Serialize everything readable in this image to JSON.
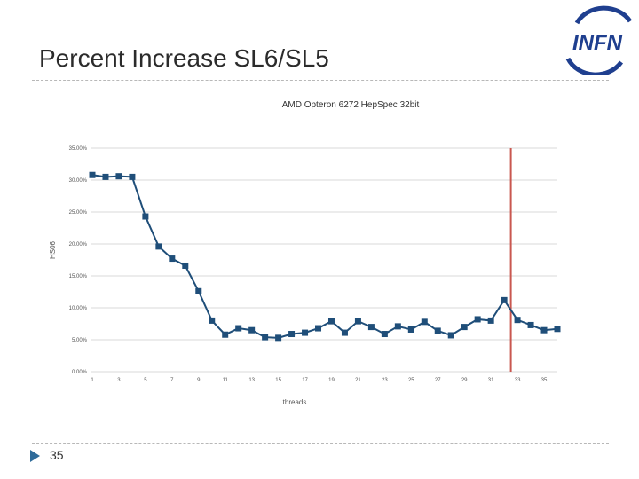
{
  "slide": {
    "title": "Percent Increase SL6/SL5",
    "page_number": "35",
    "logo_text": "INFN"
  },
  "colors": {
    "series": "#1f4e79",
    "marker": "#1f4e79",
    "marker_line": "#c9574f",
    "grid": "#d9d9d9",
    "accent": "#2f6b9a"
  },
  "chart_data": {
    "type": "line",
    "title": "AMD Opteron 6272 HepSpec 32bit",
    "xlabel": "threads",
    "ylabel": "HS06",
    "x": [
      1,
      2,
      3,
      4,
      5,
      6,
      7,
      8,
      9,
      10,
      11,
      12,
      13,
      14,
      15,
      16,
      17,
      18,
      19,
      20,
      21,
      22,
      23,
      24,
      25,
      26,
      27,
      28,
      29,
      30,
      31,
      32,
      33,
      34,
      35,
      36
    ],
    "values": [
      30.8,
      30.5,
      30.6,
      30.5,
      24.3,
      19.6,
      17.7,
      16.6,
      12.6,
      8.0,
      5.8,
      6.8,
      6.5,
      5.4,
      5.3,
      5.9,
      6.1,
      6.8,
      7.9,
      6.1,
      7.9,
      7.0,
      5.9,
      7.1,
      6.6,
      7.8,
      6.4,
      5.7,
      7.0,
      8.2,
      8.0,
      11.2,
      8.1,
      7.3,
      6.5,
      6.7
    ],
    "x_ticks": [
      1,
      3,
      5,
      7,
      9,
      11,
      13,
      15,
      17,
      19,
      21,
      23,
      25,
      27,
      29,
      31,
      33,
      35
    ],
    "y_ticks": [
      0,
      5,
      10,
      15,
      20,
      25,
      30,
      35
    ],
    "y_tick_labels": [
      "0.00%",
      "5.00%",
      "10.00%",
      "15.00%",
      "20.00%",
      "25.00%",
      "30.00%",
      "35.00%"
    ],
    "ylim": [
      0,
      35
    ],
    "xlim": [
      1,
      36
    ],
    "vertical_marker_x": 32.5,
    "grid": true,
    "legend": "none"
  }
}
